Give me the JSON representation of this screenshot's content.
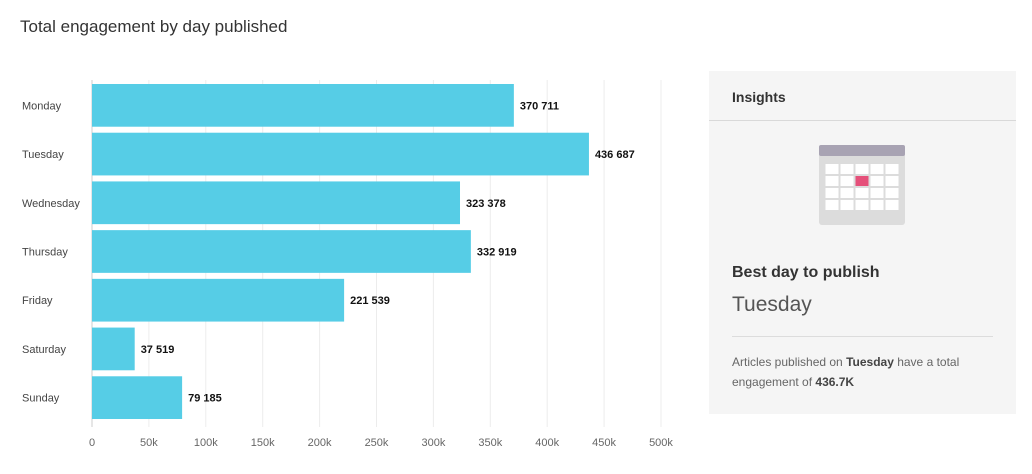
{
  "title": "Total engagement by day published",
  "chart_data": {
    "type": "bar",
    "orientation": "horizontal",
    "title": "Total engagement by day published",
    "categories": [
      "Monday",
      "Tuesday",
      "Wednesday",
      "Thursday",
      "Friday",
      "Saturday",
      "Sunday"
    ],
    "values": [
      370711,
      436687,
      323378,
      332919,
      221539,
      37519,
      79185
    ],
    "value_labels": [
      "370 711",
      "436 687",
      "323 378",
      "332 919",
      "221 539",
      "37 519",
      "79 185"
    ],
    "xlim": [
      0,
      500000
    ],
    "x_ticks": [
      0,
      50000,
      100000,
      150000,
      200000,
      250000,
      300000,
      350000,
      400000,
      450000,
      500000
    ],
    "x_tick_labels": [
      "0",
      "50k",
      "100k",
      "150k",
      "200k",
      "250k",
      "300k",
      "350k",
      "400k",
      "450k",
      "500k"
    ],
    "grid": true,
    "bar_color": "#56cde6",
    "bar_edge_color": "#ffffff"
  },
  "insights": {
    "header": "Insights",
    "icon": "calendar-icon",
    "best_label": "Best day to publish",
    "best_day": "Tuesday",
    "text_prefix": "Articles published on ",
    "text_day": "Tuesday",
    "text_middle": " have a total engagement of ",
    "text_value": "436.7K",
    "calendar_header_color": "#a8a3b3",
    "calendar_body_color": "#dcdcdc",
    "calendar_highlight_color": "#e5507a"
  }
}
